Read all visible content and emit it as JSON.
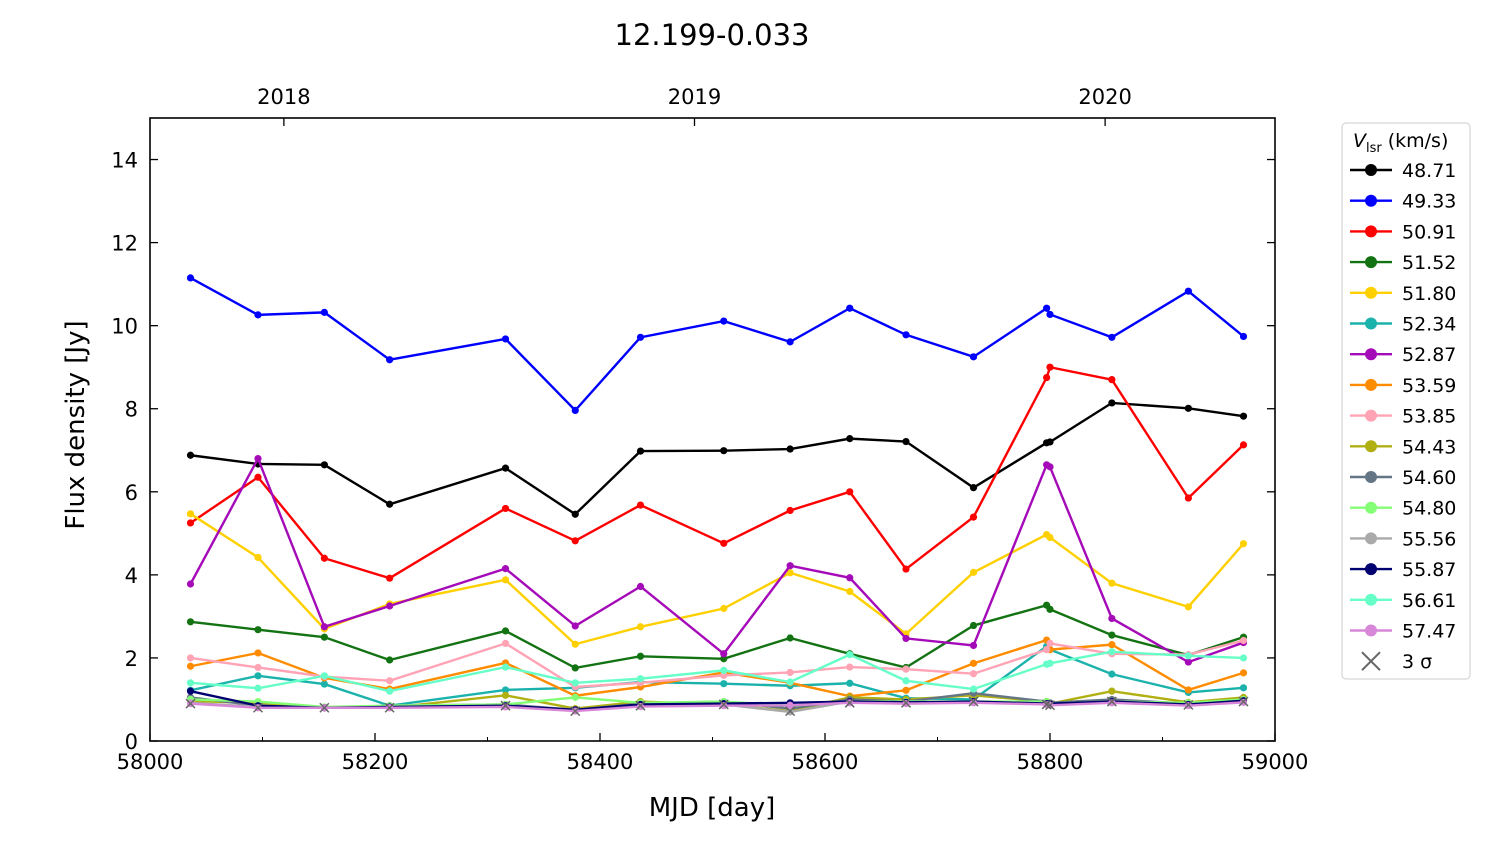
{
  "chart_data": {
    "type": "line",
    "title": "12.199-0.033",
    "xlabel": "MJD [day]",
    "ylabel": "Flux density [Jy]",
    "xlim": [
      58000,
      59000
    ],
    "xticks": [
      58000,
      58200,
      58400,
      58600,
      58800,
      59000
    ],
    "ylim": [
      0,
      15
    ],
    "yticks": [
      0,
      2,
      4,
      6,
      8,
      10,
      12,
      14
    ],
    "x2ticks": [
      {
        "value": 58119,
        "label": "2018"
      },
      {
        "value": 58484,
        "label": "2019"
      },
      {
        "value": 58849,
        "label": "2020"
      }
    ],
    "legend_title": {
      "symbol": "V",
      "subscript": "lsr",
      "unit": "(km/s)"
    },
    "legend_position": "outside-right",
    "x": [
      58036,
      58096,
      58155,
      58213,
      58316,
      58378,
      58436,
      58510,
      58569,
      58622,
      58672,
      58732,
      58797,
      58800,
      58855,
      58923,
      58972
    ],
    "series": [
      {
        "name": "48.71",
        "color": "#000000",
        "values": [
          6.88,
          6.67,
          6.65,
          5.7,
          6.57,
          5.46,
          6.98,
          6.99,
          7.03,
          7.28,
          7.21,
          6.1,
          7.18,
          7.2,
          8.14,
          8.01,
          7.82
        ]
      },
      {
        "name": "49.33",
        "color": "#0000ff",
        "values": [
          11.15,
          10.26,
          10.32,
          9.18,
          9.68,
          7.96,
          9.72,
          10.11,
          9.61,
          10.42,
          9.78,
          9.25,
          10.42,
          10.27,
          9.72,
          10.83,
          9.74
        ]
      },
      {
        "name": "50.91",
        "color": "#ff0000",
        "values": [
          5.25,
          6.35,
          4.4,
          3.92,
          5.6,
          4.82,
          5.68,
          4.76,
          5.55,
          6.0,
          4.14,
          5.39,
          8.75,
          9.0,
          8.7,
          5.85,
          7.13
        ]
      },
      {
        "name": "51.52",
        "color": "#137313",
        "values": [
          2.87,
          2.68,
          2.5,
          1.95,
          2.65,
          1.76,
          2.04,
          1.98,
          2.48,
          2.1,
          1.77,
          2.78,
          3.27,
          3.17,
          2.55,
          2.07,
          2.5
        ]
      },
      {
        "name": "51.80",
        "color": "#ffd000",
        "values": [
          5.47,
          4.42,
          2.7,
          3.3,
          3.88,
          2.33,
          2.75,
          3.19,
          4.05,
          3.6,
          2.58,
          4.06,
          4.97,
          4.9,
          3.8,
          3.23,
          4.75
        ]
      },
      {
        "name": "52.34",
        "color": "#1cb2ac",
        "values": [
          1.22,
          1.57,
          1.37,
          0.85,
          1.23,
          1.28,
          1.42,
          1.38,
          1.33,
          1.39,
          1.03,
          1.0,
          2.28,
          2.2,
          1.61,
          1.17,
          1.28
        ]
      },
      {
        "name": "52.87",
        "color": "#a50ab8",
        "values": [
          3.78,
          6.8,
          2.75,
          3.25,
          4.15,
          2.77,
          3.72,
          2.1,
          4.22,
          3.93,
          2.47,
          2.3,
          6.65,
          6.6,
          2.95,
          1.9,
          2.37
        ]
      },
      {
        "name": "53.59",
        "color": "#ff8c00",
        "values": [
          1.8,
          2.12,
          1.52,
          1.25,
          1.88,
          1.09,
          1.3,
          1.65,
          1.4,
          1.08,
          1.22,
          1.87,
          2.43,
          2.2,
          2.32,
          1.23,
          1.64
        ]
      },
      {
        "name": "53.85",
        "color": "#ffa3b5",
        "values": [
          2.0,
          1.77,
          1.55,
          1.45,
          2.35,
          1.3,
          1.4,
          1.58,
          1.65,
          1.78,
          1.73,
          1.62,
          2.2,
          2.35,
          2.1,
          2.08,
          2.42
        ]
      },
      {
        "name": "54.43",
        "color": "#b0b012",
        "values": [
          0.96,
          0.92,
          0.8,
          0.8,
          1.1,
          0.78,
          0.95,
          0.88,
          0.72,
          1.05,
          1.0,
          1.1,
          0.95,
          0.9,
          1.2,
          0.93,
          1.05
        ]
      },
      {
        "name": "54.60",
        "color": "#647585",
        "values": [
          1.05,
          0.85,
          0.8,
          0.85,
          0.88,
          0.75,
          0.9,
          0.95,
          0.78,
          1.0,
          0.95,
          1.15,
          0.95,
          0.92,
          1.0,
          0.9,
          1.0
        ]
      },
      {
        "name": "54.80",
        "color": "#85ff75",
        "values": [
          1.0,
          0.95,
          0.82,
          0.85,
          0.88,
          1.05,
          0.92,
          0.95,
          0.85,
          0.95,
          0.95,
          0.95,
          0.95,
          0.9,
          0.95,
          0.92,
          1.0
        ]
      },
      {
        "name": "55.56",
        "color": "#aaaaaa",
        "values": [
          0.92,
          0.82,
          0.8,
          0.82,
          0.85,
          0.73,
          0.85,
          0.88,
          0.7,
          0.95,
          0.92,
          0.95,
          0.9,
          0.88,
          0.95,
          0.88,
          0.95
        ]
      },
      {
        "name": "55.87",
        "color": "#000070",
        "values": [
          1.2,
          0.85,
          0.8,
          0.82,
          0.85,
          0.75,
          0.88,
          0.9,
          0.92,
          0.95,
          0.93,
          0.95,
          0.9,
          0.9,
          0.95,
          0.88,
          0.97
        ]
      },
      {
        "name": "56.61",
        "color": "#66ffc8",
        "values": [
          1.4,
          1.27,
          1.57,
          1.2,
          1.78,
          1.4,
          1.5,
          1.7,
          1.42,
          2.08,
          1.45,
          1.25,
          1.85,
          1.87,
          2.15,
          2.05,
          2.0
        ]
      },
      {
        "name": "57.47",
        "color": "#d887d8",
        "values": [
          0.9,
          0.8,
          0.8,
          0.8,
          0.82,
          0.72,
          0.83,
          0.85,
          0.86,
          0.92,
          0.9,
          0.92,
          0.88,
          0.86,
          0.92,
          0.85,
          0.93
        ]
      }
    ],
    "limits": {
      "name": "3 σ",
      "color": "#666666",
      "marker": "x",
      "values": [
        0.9,
        0.8,
        0.8,
        0.8,
        0.85,
        0.72,
        0.85,
        0.88,
        0.72,
        0.92,
        0.92,
        0.95,
        0.88,
        0.86,
        0.95,
        0.87,
        0.95
      ]
    }
  }
}
